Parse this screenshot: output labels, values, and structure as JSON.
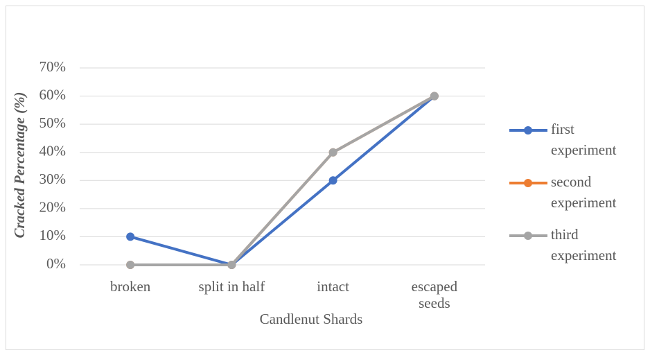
{
  "chart_data": {
    "type": "line",
    "x_label": "Candlenut Shards",
    "y_label": "Cracked Percentage (%)",
    "categories": [
      "broken",
      "split in half",
      "intact",
      "escaped seeds"
    ],
    "series": [
      {
        "name": "first experiment",
        "color": "#4472c4",
        "values": [
          10,
          0,
          30,
          60
        ]
      },
      {
        "name": "second experiment",
        "color": "#ed7d31",
        "values": [
          0,
          0,
          40,
          60
        ]
      },
      {
        "name": "third experiment",
        "color": "#a5a5a5",
        "values": [
          0,
          0,
          40,
          60
        ]
      }
    ],
    "ylim": [
      0,
      70
    ],
    "yticks": [
      {
        "value": 0,
        "label": "0%"
      },
      {
        "value": 10,
        "label": "10%"
      },
      {
        "value": 20,
        "label": "20%"
      },
      {
        "value": 30,
        "label": "30%"
      },
      {
        "value": 40,
        "label": "40%"
      },
      {
        "value": 50,
        "label": "50%"
      },
      {
        "value": 60,
        "label": "60%"
      },
      {
        "value": 70,
        "label": "70%"
      }
    ],
    "grid": true,
    "legend": "right"
  }
}
